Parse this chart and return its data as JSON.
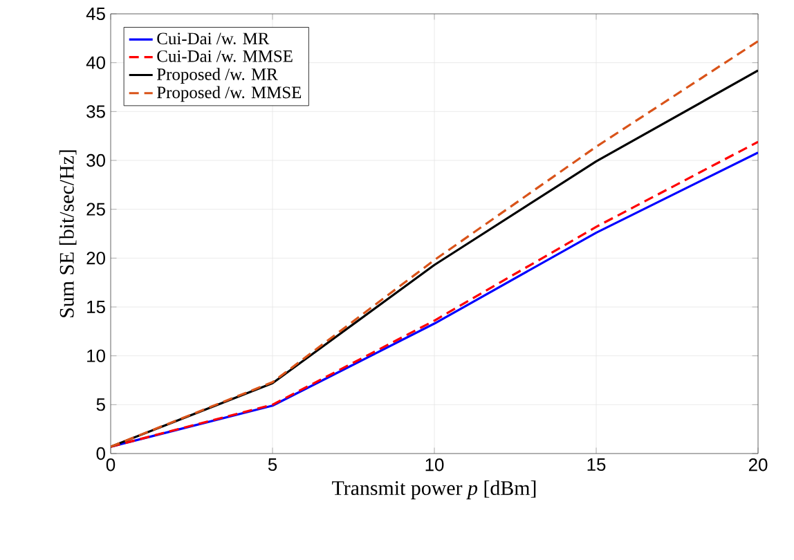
{
  "chart_data": {
    "type": "line",
    "xlabel": "Transmit power *p* [dBm]",
    "ylabel": "Sum SE [bit/sec/Hz]",
    "x": [
      0,
      5,
      10,
      15,
      20
    ],
    "series": [
      {
        "name": "Cui-Dai /w. MR",
        "color": "#0000ff",
        "line_style": "solid",
        "values": [
          0.7,
          4.9,
          13.3,
          22.6,
          30.8
        ]
      },
      {
        "name": "Cui-Dai /w. MMSE",
        "color": "#ff0000",
        "line_style": "dashed",
        "values": [
          0.7,
          5.0,
          13.6,
          23.2,
          31.9
        ]
      },
      {
        "name": "Proposed /w. MR",
        "color": "#000000",
        "line_style": "solid",
        "values": [
          0.7,
          7.2,
          19.3,
          29.9,
          39.2
        ]
      },
      {
        "name": "Proposed /w. MMSE",
        "color": "#d95319",
        "line_style": "dashed",
        "values": [
          0.7,
          7.3,
          19.8,
          31.4,
          42.2
        ]
      }
    ],
    "xlim": [
      0,
      20
    ],
    "ylim": [
      0,
      45
    ],
    "xticks": [
      0,
      5,
      10,
      15,
      20
    ],
    "yticks": [
      0,
      5,
      10,
      15,
      20,
      25,
      30,
      35,
      40,
      45
    ],
    "grid": true,
    "legend": "top left",
    "marker": "none"
  }
}
